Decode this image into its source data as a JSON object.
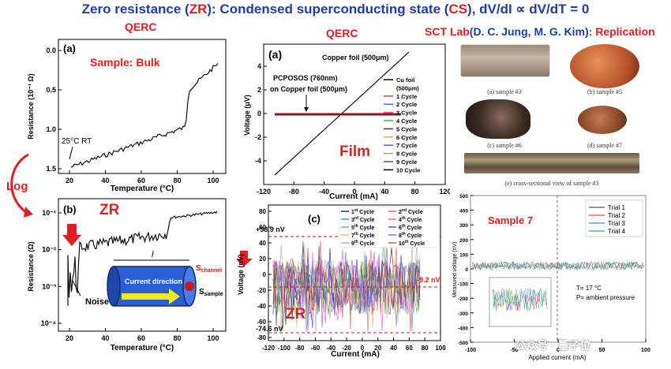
{
  "title": {
    "p1": "Zero resistance (",
    "zr": "ZR",
    "p2": "): Condensed superconducting state (",
    "cs": "CS",
    "p3": "), dV/dI ∝ dV/dT = 0"
  },
  "headers": {
    "left": "QERC",
    "middle": "QERC",
    "right_lab": "SCT Lab",
    "right_names": "(D. C. Jung, M. G. Kim)",
    "right_suffix": ": Replication"
  },
  "log_label": "Log",
  "panel_a_left": {
    "label": "(a)",
    "sample_title": "Sample: Bulk",
    "annotation": "25°C RT",
    "ylabel": "Resistance (10⁻¹ Ω)",
    "xlabel": "Temperature (°C)",
    "yticks": [
      "0.0",
      "0.5",
      "1.0",
      "1.5"
    ],
    "xticks": [
      "20",
      "40",
      "60",
      "80",
      "100"
    ]
  },
  "panel_b_left": {
    "label": "(b)",
    "zr": "ZR",
    "ylabel": "Resistance (Ω)",
    "xlabel": "Temperature (°C)",
    "yticks": [
      "10⁻¹",
      "10⁻²",
      "10⁻³",
      "10⁻⁴"
    ],
    "xticks": [
      "20",
      "40",
      "60",
      "80",
      "100"
    ],
    "noise": "Noise",
    "inset": {
      "l": "l",
      "current": "Current direction",
      "s_channel": "S",
      "s_channel_sub": "channel",
      "s_sample": "S",
      "s_sample_sub": "sample"
    }
  },
  "panel_a_mid": {
    "label": "(a)",
    "copper": "Copper foil (500μm)",
    "pcposos": "PCPOSOS (760nm)",
    "on_copper": "on Copper foil (500μm)",
    "film": "Film",
    "ylabel": "Voltage (μV)",
    "xlabel": "Current (mA)",
    "yticks": [
      "4",
      "2",
      "0",
      "-2",
      "-4"
    ],
    "xticks": [
      "-120",
      "-80",
      "-40",
      "0",
      "40",
      "80",
      "120"
    ],
    "legend": [
      "Cu foil",
      "(500μm)",
      "1 Cycle",
      "2 Cycle",
      "3 Cycle",
      "4 Cycle",
      "5 Cycle",
      "6 Cycle",
      "7 Cycle",
      "8 Cycle",
      "9 Cycle",
      "10 Cycle"
    ]
  },
  "panel_c_mid": {
    "label": "(c)",
    "zr": "ZR",
    "ylabel": "Voltage (nV)",
    "xlabel": "Current (mA)",
    "yticks": [
      "80",
      "60",
      "40",
      "20",
      "0",
      "-20",
      "-40",
      "-60",
      "-80"
    ],
    "xticks": [
      "-120",
      "-100",
      "-80",
      "-60",
      "-40",
      "-20",
      "0",
      "20",
      "40",
      "60",
      "80",
      "100"
    ],
    "top_line": "+58.9 nV",
    "mid_line": "-9.2 nV",
    "bottom_line": "-74.6 nV",
    "legend": [
      [
        "1",
        "st",
        "2",
        "nd"
      ],
      [
        "3",
        "rd",
        "4",
        "th"
      ],
      [
        "5",
        "th",
        "6",
        "th"
      ],
      [
        "7",
        "th",
        "8",
        "th"
      ],
      [
        "9",
        "th",
        "10",
        "th"
      ]
    ],
    "cycle_word": "Cycle"
  },
  "photos": {
    "caption_a": "(a) sample #3",
    "caption_b": "(b) sample #5",
    "caption_c": "(c) sample #6",
    "caption_d": "(d) sample #7",
    "caption_e": "(e) cross-sectional view of sample #3"
  },
  "sample7": {
    "title": "Sample 7",
    "ylabel": "Measured voltage (nV)",
    "xlabel": "Applied current (mA)",
    "yticks": [
      "500",
      "400",
      "300",
      "200",
      "100",
      "0",
      "-100",
      "-200",
      "-300",
      "-400",
      "-500"
    ],
    "xticks": [
      "-100",
      "-50",
      "0",
      "50",
      "100"
    ],
    "legend": [
      "Trial 1",
      "Trial 2",
      "Trial 3",
      "Trial 4"
    ],
    "temp": "T= 17 °C",
    "pressure": "P= ambient pressure"
  },
  "watermark": "公众号 · 量子位",
  "colors": {
    "title_blue": "#1f3da8",
    "accent_red": "#e02020",
    "series": [
      "#000000",
      "#e8403a",
      "#3a6ee8",
      "#e83ab4",
      "#28b45a",
      "#2a2aa8",
      "#e8a83a",
      "#8a3ae8",
      "#a0a0a0",
      "#7a4a2a"
    ]
  }
}
